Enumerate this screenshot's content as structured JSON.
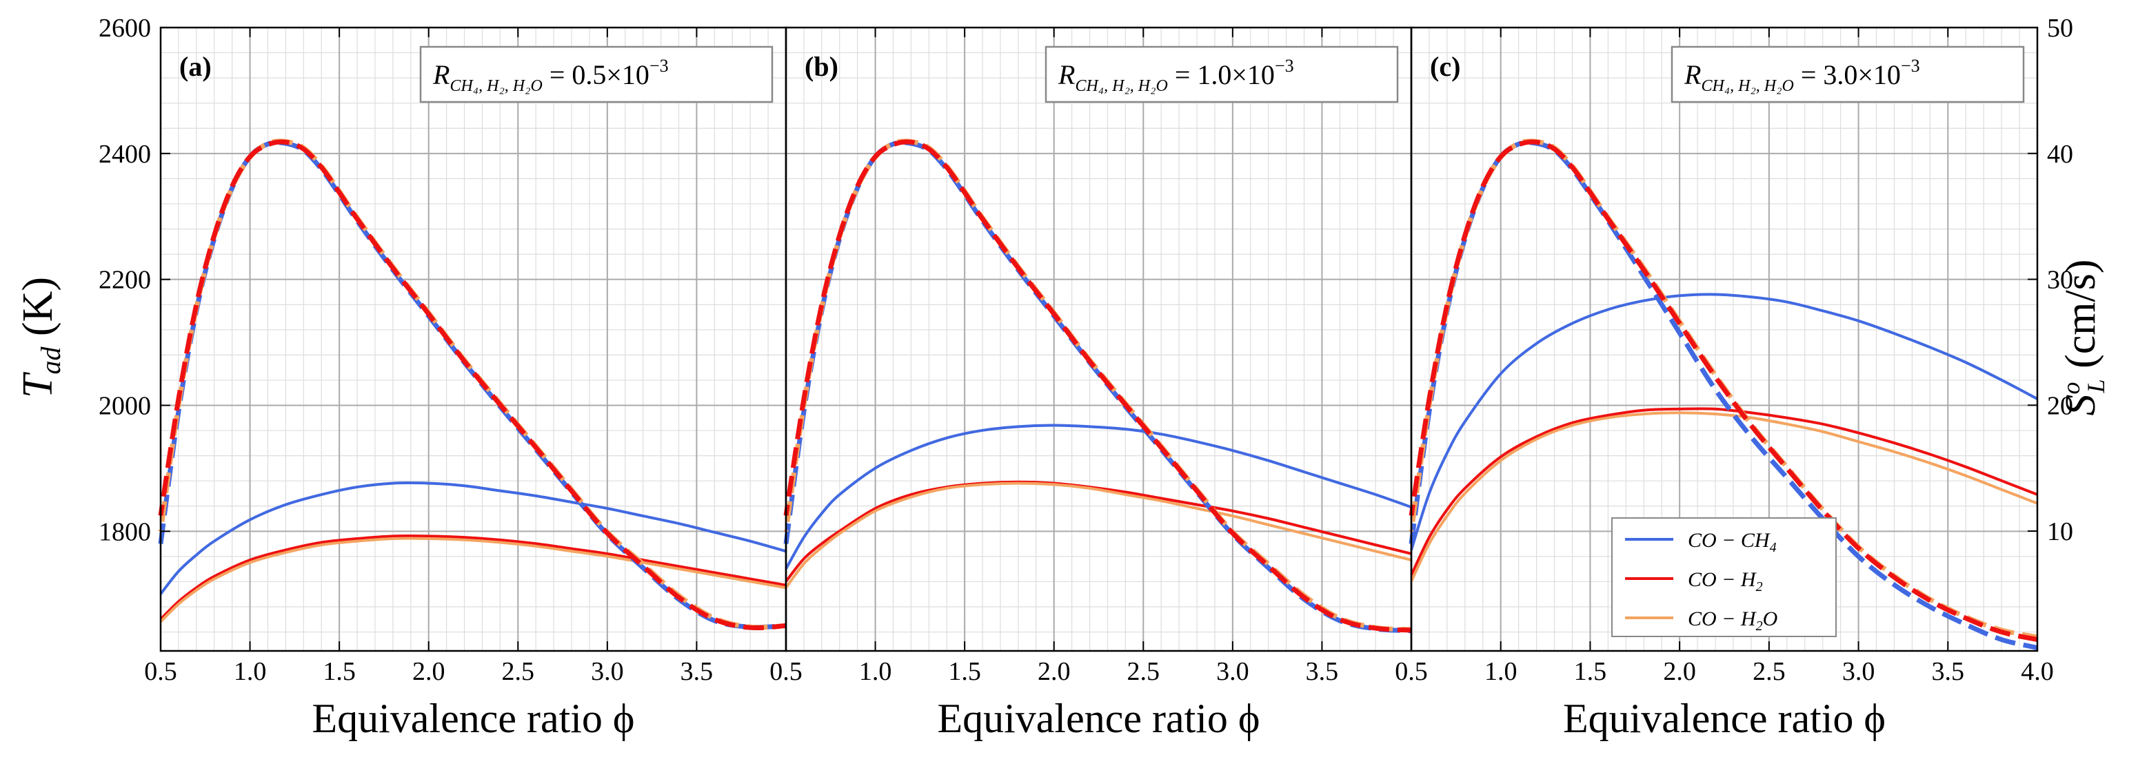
{
  "chart_data": {
    "type": "line",
    "shared": {
      "x_range": [
        0.5,
        4.0
      ],
      "y_left_range": [
        1610,
        2600
      ],
      "y_right_range": [
        0.48,
        50
      ],
      "x_ticks": [
        0.5,
        1.0,
        1.5,
        2.0,
        2.5,
        3.0,
        3.5,
        4.0
      ],
      "x_tick_labels": [
        "0.5",
        "1.0",
        "1.5",
        "2.0",
        "2.5",
        "3.0",
        "3.5",
        "4.0"
      ],
      "y_left_ticks": [
        1800,
        2000,
        2200,
        2400,
        2600
      ],
      "y_left_tick_labels": [
        "1800",
        "2000",
        "2200",
        "2400",
        "2600"
      ],
      "y_right_ticks": [
        10,
        20,
        30,
        40,
        50
      ],
      "y_right_tick_labels": [
        "10",
        "20",
        "30",
        "40",
        "50"
      ],
      "xlabel": "Equivalence ratio ϕ",
      "ylabel_left": "T",
      "ylabel_left_sub": "ad",
      "ylabel_left_unit": "(K)",
      "ylabel_right": "S",
      "ylabel_right_sup": "o",
      "ylabel_right_sub": "L",
      "ylabel_right_unit": "(cm/s)",
      "grid": true
    },
    "legend": {
      "placement": "lower-right of panel (c)",
      "entries": [
        {
          "label": "CO − CH",
          "sub": "4",
          "tail": "",
          "color": "#4169E1"
        },
        {
          "label": "CO − H",
          "sub": "2",
          "tail": "",
          "color": "#EE1111"
        },
        {
          "label": "CO − H",
          "sub": "2",
          "tail": "O",
          "color": "#F4A460"
        }
      ]
    },
    "temperature_x": [
      0.5,
      0.6,
      0.7,
      0.8,
      0.9,
      1.0,
      1.1,
      1.2,
      1.3,
      1.4,
      1.5,
      1.6,
      1.8,
      2.0,
      2.2,
      2.4,
      2.6,
      2.8,
      3.0,
      3.2,
      3.4,
      3.6,
      3.8,
      4.0
    ],
    "speed_x": [
      0.5,
      0.6,
      0.7,
      0.8,
      1.0,
      1.2,
      1.4,
      1.6,
      1.8,
      2.0,
      2.2,
      2.4,
      2.6,
      2.8,
      3.0,
      3.2,
      3.4,
      3.6,
      3.8,
      4.0
    ],
    "panels": [
      {
        "label": "(a)",
        "annotation_prefix": "R",
        "annotation_sub": "CH₄, H₂, H₂O",
        "annotation_value": " = 0.5×10",
        "annotation_exp": "−3",
        "series": [
          {
            "name": "CO − CH4 T_ad",
            "axis": "left",
            "style": "dashed",
            "color": "#4169E1",
            "values": [
              1780,
              1990,
              2150,
              2265,
              2345,
              2395,
              2415,
              2416,
              2405,
              2375,
              2335,
              2293,
              2215,
              2142,
              2068,
              1998,
              1930,
              1862,
              1795,
              1742,
              1692,
              1658,
              1648,
              1650
            ]
          },
          {
            "name": "CO − H2 T_ad",
            "axis": "left",
            "style": "dashed",
            "color": "#EE1111",
            "values": [
              1825,
              2010,
              2160,
              2270,
              2348,
              2395,
              2414,
              2418,
              2407,
              2378,
              2338,
              2296,
              2218,
              2145,
              2070,
              2001,
              1933,
              1864,
              1797,
              1745,
              1695,
              1660,
              1647,
              1650
            ]
          },
          {
            "name": "CO − H2O T_ad",
            "axis": "left",
            "style": "dashed",
            "color": "#F4A460",
            "values": [
              1800,
              2000,
              2155,
              2268,
              2346,
              2394,
              2416,
              2419,
              2409,
              2380,
              2340,
              2298,
              2220,
              2147,
              2072,
              2003,
              1935,
              1866,
              1799,
              1748,
              1698,
              1662,
              1648,
              1650
            ]
          },
          {
            "name": "CO − CH4 S_L",
            "axis": "right",
            "style": "solid",
            "color": "#4169E1",
            "values": [
              5.0,
              6.8,
              8.1,
              9.2,
              10.9,
              12.1,
              12.9,
              13.5,
              13.8,
              13.8,
              13.6,
              13.2,
              12.8,
              12.3,
              11.8,
              11.2,
              10.6,
              9.9,
              9.2,
              8.4
            ]
          },
          {
            "name": "CO − H2 S_L",
            "axis": "right",
            "style": "solid",
            "color": "#EE1111",
            "values": [
              3.0,
              4.4,
              5.5,
              6.4,
              7.7,
              8.5,
              9.1,
              9.4,
              9.6,
              9.6,
              9.5,
              9.3,
              9.0,
              8.6,
              8.2,
              7.7,
              7.2,
              6.7,
              6.2,
              5.7
            ]
          },
          {
            "name": "CO − H2O S_L",
            "axis": "right",
            "style": "solid",
            "color": "#F4A460",
            "values": [
              2.8,
              4.2,
              5.3,
              6.2,
              7.5,
              8.3,
              8.9,
              9.2,
              9.4,
              9.4,
              9.3,
              9.1,
              8.8,
              8.4,
              8.0,
              7.5,
              7.0,
              6.5,
              6.0,
              5.5
            ]
          }
        ]
      },
      {
        "label": "(b)",
        "annotation_prefix": "R",
        "annotation_sub": "CH₄, H₂, H₂O",
        "annotation_value": " = 1.0×10",
        "annotation_exp": "−3",
        "series": [
          {
            "name": "CO − CH4 T_ad",
            "axis": "left",
            "style": "dashed",
            "color": "#4169E1",
            "values": [
              1780,
              1990,
              2150,
              2265,
              2345,
              2395,
              2415,
              2416,
              2405,
              2375,
              2335,
              2293,
              2215,
              2142,
              2068,
              1998,
              1930,
              1862,
              1795,
              1742,
              1692,
              1658,
              1645,
              1642
            ]
          },
          {
            "name": "CO − H2 T_ad",
            "axis": "left",
            "style": "dashed",
            "color": "#EE1111",
            "values": [
              1825,
              2010,
              2160,
              2270,
              2348,
              2395,
              2414,
              2418,
              2407,
              2378,
              2338,
              2296,
              2218,
              2145,
              2070,
              2001,
              1933,
              1864,
              1797,
              1745,
              1695,
              1660,
              1646,
              1643
            ]
          },
          {
            "name": "CO − H2O T_ad",
            "axis": "left",
            "style": "dashed",
            "color": "#F4A460",
            "values": [
              1800,
              2000,
              2155,
              2268,
              2346,
              2394,
              2416,
              2419,
              2409,
              2380,
              2340,
              2298,
              2220,
              2147,
              2072,
              2003,
              1935,
              1866,
              1799,
              1748,
              1698,
              1662,
              1647,
              1644
            ]
          },
          {
            "name": "CO − CH4 S_L",
            "axis": "right",
            "style": "solid",
            "color": "#4169E1",
            "values": [
              7.0,
              9.5,
              11.4,
              12.9,
              15.0,
              16.4,
              17.4,
              18.0,
              18.3,
              18.4,
              18.3,
              18.1,
              17.7,
              17.1,
              16.4,
              15.6,
              14.7,
              13.8,
              12.9,
              11.9
            ]
          },
          {
            "name": "CO − H2 S_L",
            "axis": "right",
            "style": "solid",
            "color": "#EE1111",
            "values": [
              6.0,
              7.8,
              9.0,
              10.0,
              11.8,
              12.9,
              13.5,
              13.8,
              13.9,
              13.8,
              13.5,
              13.1,
              12.6,
              12.1,
              11.6,
              11.0,
              10.3,
              9.6,
              8.9,
              8.2
            ]
          },
          {
            "name": "CO − H2O S_L",
            "axis": "right",
            "style": "solid",
            "color": "#F4A460",
            "values": [
              5.5,
              7.4,
              8.7,
              9.8,
              11.6,
              12.7,
              13.4,
              13.7,
              13.8,
              13.7,
              13.4,
              12.9,
              12.4,
              11.8,
              11.2,
              10.5,
              9.8,
              9.1,
              8.4,
              7.7
            ]
          }
        ]
      },
      {
        "label": "(c)",
        "annotation_prefix": "R",
        "annotation_sub": "CH₄, H₂, H₂O",
        "annotation_value": " = 3.0×10",
        "annotation_exp": "−3",
        "series": [
          {
            "name": "CO − CH4 T_ad",
            "axis": "left",
            "style": "dashed",
            "color": "#4169E1",
            "values": [
              1780,
              1990,
              2150,
              2265,
              2345,
              2395,
              2415,
              2416,
              2405,
              2375,
              2335,
              2293,
              2205,
              2115,
              2025,
              1950,
              1885,
              1820,
              1760,
              1715,
              1680,
              1652,
              1628,
              1615
            ]
          },
          {
            "name": "CO − H2 T_ad",
            "axis": "left",
            "style": "dashed",
            "color": "#EE1111",
            "values": [
              1825,
              2010,
              2160,
              2270,
              2348,
              2395,
              2414,
              2418,
              2407,
              2378,
              2338,
              2296,
              2215,
              2130,
              2045,
              1968,
              1900,
              1833,
              1773,
              1727,
              1690,
              1662,
              1640,
              1628
            ]
          },
          {
            "name": "CO − H2O T_ad",
            "axis": "left",
            "style": "dashed",
            "color": "#F4A460",
            "values": [
              1800,
              2000,
              2155,
              2268,
              2346,
              2394,
              2416,
              2419,
              2409,
              2380,
              2340,
              2298,
              2218,
              2133,
              2048,
              1970,
              1902,
              1835,
              1775,
              1729,
              1692,
              1664,
              1643,
              1632
            ]
          },
          {
            "name": "CO − CH4 S_L",
            "axis": "right",
            "style": "solid",
            "color": "#4169E1",
            "values": [
              8.5,
              13.0,
              16.2,
              18.7,
              22.5,
              24.9,
              26.5,
              27.6,
              28.3,
              28.7,
              28.8,
              28.6,
              28.2,
              27.5,
              26.7,
              25.7,
              24.6,
              23.4,
              22.0,
              20.5
            ]
          },
          {
            "name": "CO − H2 S_L",
            "axis": "right",
            "style": "solid",
            "color": "#EE1111",
            "values": [
              6.5,
              9.5,
              11.7,
              13.4,
              15.9,
              17.5,
              18.6,
              19.2,
              19.6,
              19.7,
              19.7,
              19.4,
              19.0,
              18.5,
              17.8,
              17.0,
              16.1,
              15.1,
              14.0,
              12.9
            ]
          },
          {
            "name": "CO − H2O S_L",
            "axis": "right",
            "style": "solid",
            "color": "#F4A460",
            "values": [
              6.0,
              9.0,
              11.2,
              13.0,
              15.6,
              17.3,
              18.4,
              19.0,
              19.3,
              19.4,
              19.3,
              19.0,
              18.5,
              17.9,
              17.1,
              16.3,
              15.4,
              14.4,
              13.3,
              12.2
            ]
          }
        ]
      }
    ]
  }
}
